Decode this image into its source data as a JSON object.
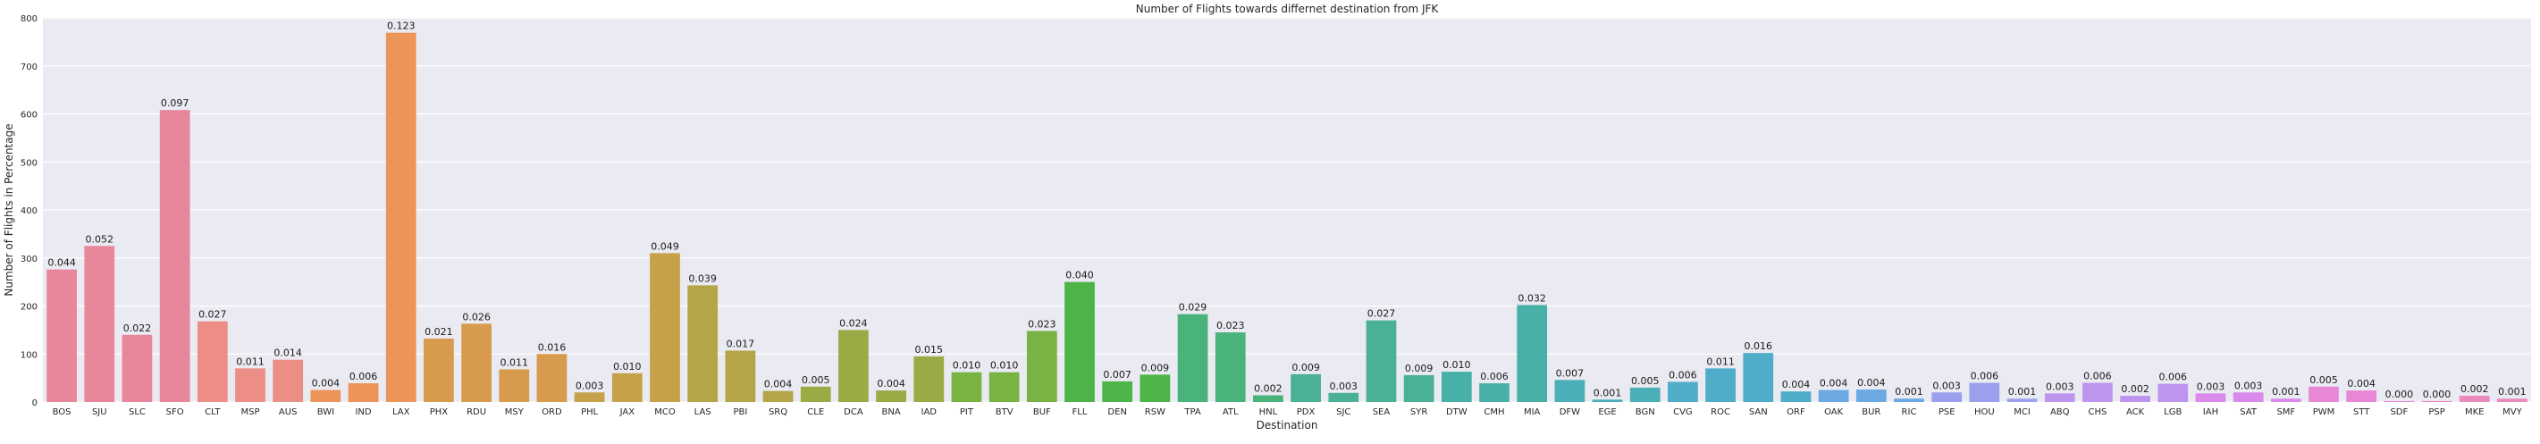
{
  "chart_data": {
    "type": "bar",
    "title": "Number of Flights towards differnet destination from JFK",
    "xlabel": "Destination",
    "ylabel": "Number of Flights in Percentage",
    "ylim": [
      0,
      800
    ],
    "yticks": [
      0,
      100,
      200,
      300,
      400,
      500,
      600,
      700,
      800
    ],
    "grid": true,
    "categories": [
      "BOS",
      "SJU",
      "SLC",
      "SFO",
      "CLT",
      "MSP",
      "AUS",
      "BWI",
      "IND",
      "LAX",
      "PHX",
      "RDU",
      "MSY",
      "ORD",
      "PHL",
      "JAX",
      "MCO",
      "LAS",
      "PBI",
      "SRQ",
      "CLE",
      "DCA",
      "BNA",
      "IAD",
      "PIT",
      "BTV",
      "BUF",
      "FLL",
      "DEN",
      "RSW",
      "TPA",
      "ATL",
      "HNL",
      "PDX",
      "SJC",
      "SEA",
      "SYR",
      "DTW",
      "CMH",
      "MIA",
      "DFW",
      "EGE",
      "BGN",
      "CVG",
      "ROC",
      "SAN",
      "ORF",
      "OAK",
      "BUR",
      "RIC",
      "PSE",
      "HOU",
      "MCI",
      "ABQ",
      "CHS",
      "ACK",
      "LGB",
      "IAH",
      "SAT",
      "SMF",
      "PWM",
      "STT",
      "SDF",
      "PSP",
      "MKE",
      "MVY"
    ],
    "values": [
      276,
      325,
      140,
      608,
      168,
      70,
      88,
      25,
      39,
      769,
      132,
      163,
      68,
      100,
      20,
      60,
      310,
      243,
      107,
      23,
      32,
      150,
      24,
      95,
      62,
      62,
      148,
      250,
      43,
      57,
      183,
      145,
      14,
      58,
      19,
      170,
      56,
      63,
      39,
      202,
      46,
      5,
      30,
      42,
      70,
      102,
      22,
      25,
      26,
      7,
      20,
      40,
      7,
      18,
      40,
      13,
      38,
      18,
      20,
      7,
      32,
      24,
      2,
      2,
      13,
      7
    ],
    "data_labels": [
      "0.044",
      "0.052",
      "0.022",
      "0.097",
      "0.027",
      "0.011",
      "0.014",
      "0.004",
      "0.006",
      "0.123",
      "0.021",
      "0.026",
      "0.011",
      "0.016",
      "0.003",
      "0.010",
      "0.049",
      "0.039",
      "0.017",
      "0.004",
      "0.005",
      "0.024",
      "0.004",
      "0.015",
      "0.010",
      "0.010",
      "0.023",
      "0.040",
      "0.007",
      "0.009",
      "0.029",
      "0.023",
      "0.002",
      "0.009",
      "0.003",
      "0.027",
      "0.009",
      "0.010",
      "0.006",
      "0.032",
      "0.007",
      "0.001",
      "0.005",
      "0.006",
      "0.011",
      "0.016",
      "0.004",
      "0.004",
      "0.004",
      "0.001",
      "0.003",
      "0.006",
      "0.001",
      "0.003",
      "0.006",
      "0.002",
      "0.006",
      "0.003",
      "0.003",
      "0.001",
      "0.005",
      "0.004",
      "0.000",
      "0.000",
      "0.002",
      "0.001"
    ],
    "colors": {
      "background": "#EAEAF2",
      "grid": "#FFFFFF",
      "palette": [
        "#E8879C",
        "#EC8E85",
        "#ED9459",
        "#D89A4C",
        "#C5A14A",
        "#B3A548",
        "#9AAB46",
        "#78B344",
        "#4DB547",
        "#4AB27B",
        "#4AB197",
        "#49B0A8",
        "#4BAFB9",
        "#4FADC9",
        "#6CA9E2",
        "#9BA0EE",
        "#BE95EE",
        "#DA8AEA",
        "#E887D6",
        "#EB88BC"
      ]
    }
  }
}
